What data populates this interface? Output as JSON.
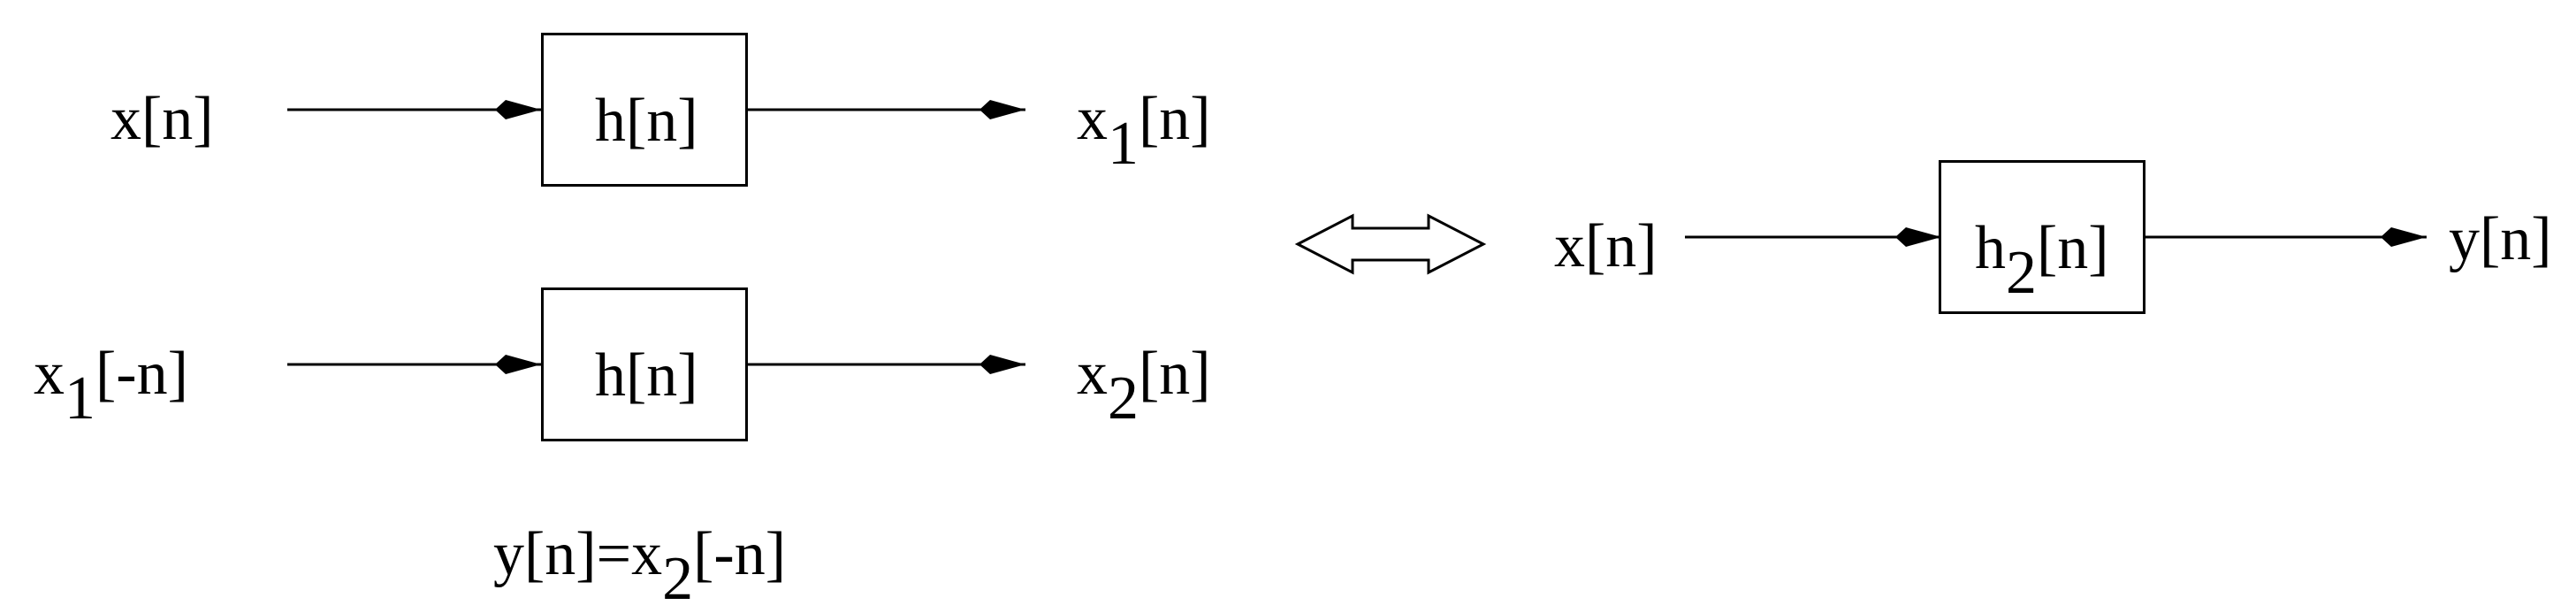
{
  "diagram": {
    "top_chain": {
      "input": {
        "base": "x",
        "rest": "[n]"
      },
      "block": {
        "base": "h",
        "rest": "[n]"
      },
      "output": {
        "base": "x",
        "sub": "1",
        "rest": "[n]"
      }
    },
    "bottom_chain": {
      "input": {
        "base": "x",
        "sub": "1",
        "rest": "[-n]"
      },
      "block": {
        "base": "h",
        "rest": "[n]"
      },
      "output": {
        "base": "x",
        "sub": "2",
        "rest": "[n]"
      }
    },
    "relation": {
      "lhs": "y[n]=x",
      "sub": "2",
      "rest": "[-n]"
    },
    "equivalent_chain": {
      "input": {
        "base": "x",
        "rest": "[n]"
      },
      "block": {
        "base": "h",
        "sub": "2",
        "rest": "[n]"
      },
      "output": {
        "base": "y",
        "rest": "[n]"
      }
    }
  }
}
